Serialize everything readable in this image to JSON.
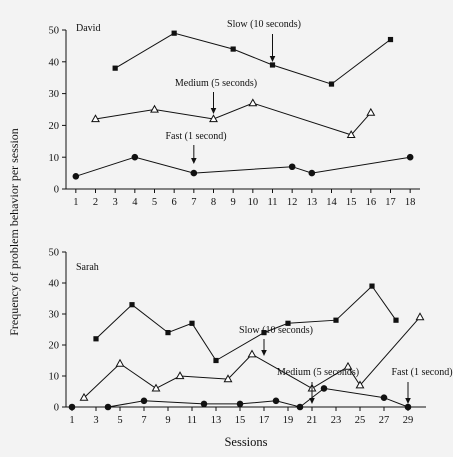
{
  "y_axis_label": "Frequency of problem behavior per session",
  "x_axis_label": "Sessions",
  "chart_data": [
    {
      "type": "line",
      "title": "David",
      "xlim": [
        0.5,
        18.5
      ],
      "ylim": [
        0,
        50
      ],
      "x_ticks": [
        1,
        2,
        3,
        4,
        5,
        6,
        7,
        8,
        9,
        10,
        11,
        12,
        13,
        14,
        15,
        16,
        17,
        18
      ],
      "y_ticks": [
        0,
        10,
        20,
        30,
        40,
        50
      ],
      "grid": false,
      "series": [
        {
          "label": "Slow (10 seconds)",
          "marker": "square",
          "x": [
            3,
            6,
            9,
            11,
            14,
            17
          ],
          "y": [
            38,
            49,
            44,
            39,
            33,
            47
          ],
          "arrow_at": 11
        },
        {
          "label": "Medium (5 seconds)",
          "marker": "triangle",
          "x": [
            2,
            5,
            8,
            10,
            15,
            16
          ],
          "y": [
            22,
            25,
            22,
            27,
            17,
            24
          ],
          "arrow_at": 8
        },
        {
          "label": "Fast (1 second)",
          "marker": "circle",
          "x": [
            1,
            4,
            7,
            12,
            13,
            18
          ],
          "y": [
            4,
            10,
            5,
            7,
            5,
            10
          ],
          "arrow_at": 7
        }
      ]
    },
    {
      "type": "line",
      "title": "Sarah",
      "xlim": [
        0.5,
        30.5
      ],
      "ylim": [
        0,
        50
      ],
      "x_ticks": [
        1,
        3,
        5,
        7,
        9,
        11,
        13,
        15,
        17,
        19,
        21,
        23,
        25,
        27,
        29
      ],
      "y_ticks": [
        0,
        10,
        20,
        30,
        40,
        50
      ],
      "grid": false,
      "series": [
        {
          "label": "Slow (10 seconds)",
          "marker": "square",
          "x": [
            3,
            6,
            9,
            11,
            13,
            17,
            19,
            23,
            26,
            28
          ],
          "y": [
            22,
            33,
            24,
            27,
            15,
            24,
            27,
            28,
            39,
            28
          ],
          "arrow_at": 17
        },
        {
          "label": "Medium (5 seconds)",
          "marker": "triangle",
          "x": [
            2,
            5,
            8,
            10,
            14,
            16,
            21,
            24,
            25,
            30
          ],
          "y": [
            3,
            14,
            6,
            10,
            9,
            17,
            6,
            13,
            7,
            29
          ],
          "arrow_at": 21
        },
        {
          "label": "Fast (1 second)",
          "marker": "circle",
          "x": [
            1,
            4,
            7,
            12,
            15,
            18,
            20,
            22,
            27,
            29
          ],
          "y": [
            0,
            0,
            2,
            1,
            1,
            2,
            0,
            6,
            3,
            0
          ],
          "arrow_at": 29
        }
      ]
    }
  ]
}
